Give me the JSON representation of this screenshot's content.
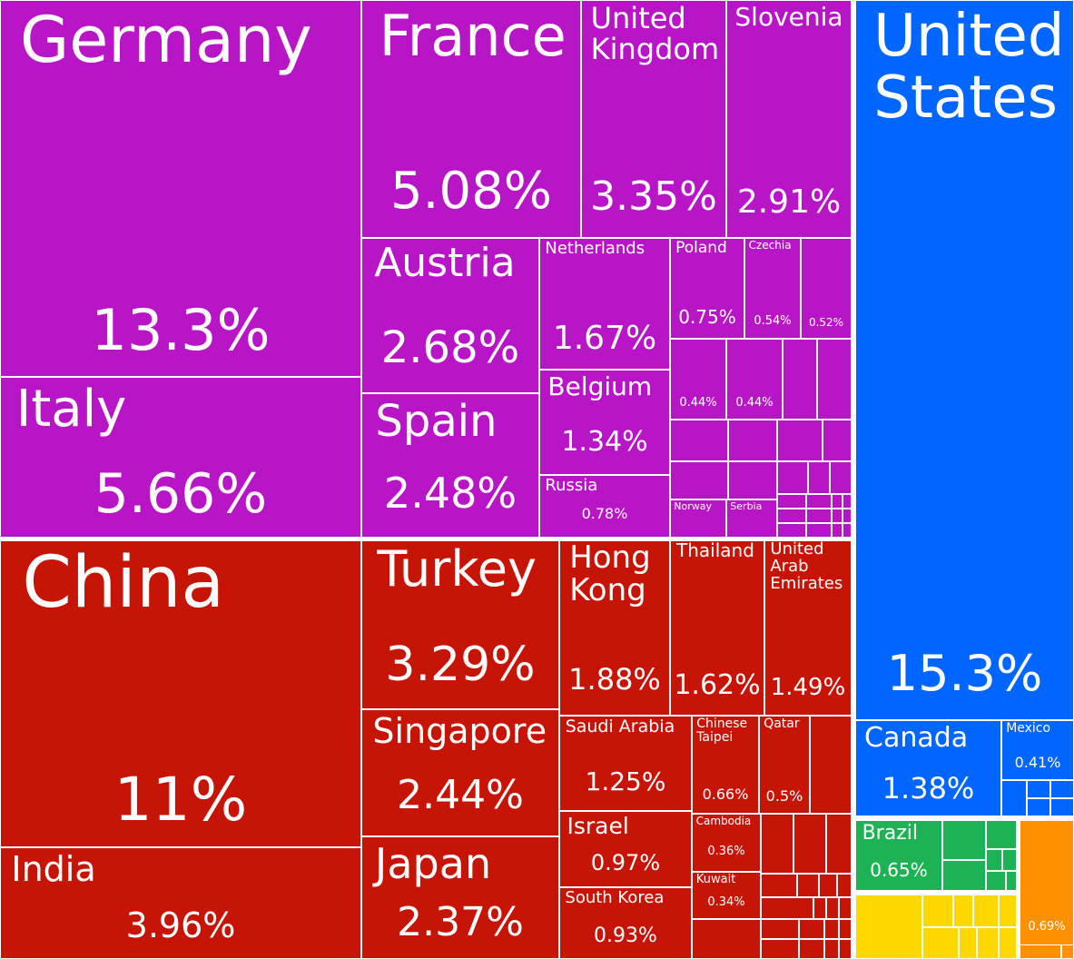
{
  "chart_data": {
    "type": "treemap",
    "title": "",
    "colors": {
      "Europe": "#b815c6",
      "Asia": "#c61507",
      "North America": "#0066ff",
      "South America": "#1db354",
      "Oceania": "#ffd800",
      "Africa": "#ff9000"
    },
    "items": [
      {
        "label": "Germany",
        "value": "13.3%",
        "region": "Europe"
      },
      {
        "label": "Italy",
        "value": "5.66%",
        "region": "Europe"
      },
      {
        "label": "France",
        "value": "5.08%",
        "region": "Europe"
      },
      {
        "label": "United Kingdom",
        "value": "3.35%",
        "region": "Europe"
      },
      {
        "label": "Slovenia",
        "value": "2.91%",
        "region": "Europe"
      },
      {
        "label": "Austria",
        "value": "2.68%",
        "region": "Europe"
      },
      {
        "label": "Spain",
        "value": "2.48%",
        "region": "Europe"
      },
      {
        "label": "Netherlands",
        "value": "1.67%",
        "region": "Europe"
      },
      {
        "label": "Belgium",
        "value": "1.34%",
        "region": "Europe"
      },
      {
        "label": "Russia",
        "value": "0.78%",
        "region": "Europe"
      },
      {
        "label": "Poland",
        "value": "0.75%",
        "region": "Europe"
      },
      {
        "label": "Czechia",
        "value": "0.54%",
        "region": "Europe"
      },
      {
        "label": "",
        "value": "0.52%",
        "region": "Europe"
      },
      {
        "label": "",
        "value": "0.44%",
        "region": "Europe"
      },
      {
        "label": "",
        "value": "0.44%",
        "region": "Europe"
      },
      {
        "label": "Norway",
        "value": "",
        "region": "Europe"
      },
      {
        "label": "Serbia",
        "value": "",
        "region": "Europe"
      },
      {
        "label": "China",
        "value": "11%",
        "region": "Asia"
      },
      {
        "label": "India",
        "value": "3.96%",
        "region": "Asia"
      },
      {
        "label": "Turkey",
        "value": "3.29%",
        "region": "Asia"
      },
      {
        "label": "Singapore",
        "value": "2.44%",
        "region": "Asia"
      },
      {
        "label": "Japan",
        "value": "2.37%",
        "region": "Asia"
      },
      {
        "label": "Hong Kong",
        "value": "1.88%",
        "region": "Asia"
      },
      {
        "label": "Thailand",
        "value": "1.62%",
        "region": "Asia"
      },
      {
        "label": "United Arab Emirates",
        "value": "1.49%",
        "region": "Asia"
      },
      {
        "label": "Saudi Arabia",
        "value": "1.25%",
        "region": "Asia"
      },
      {
        "label": "Israel",
        "value": "0.97%",
        "region": "Asia"
      },
      {
        "label": "South Korea",
        "value": "0.93%",
        "region": "Asia"
      },
      {
        "label": "Chinese Taipei",
        "value": "0.66%",
        "region": "Asia"
      },
      {
        "label": "Qatar",
        "value": "0.5%",
        "region": "Asia"
      },
      {
        "label": "Cambodia",
        "value": "0.36%",
        "region": "Asia"
      },
      {
        "label": "Kuwait",
        "value": "0.34%",
        "region": "Asia"
      },
      {
        "label": "United States",
        "value": "15.3%",
        "region": "North America"
      },
      {
        "label": "Canada",
        "value": "1.38%",
        "region": "North America"
      },
      {
        "label": "Mexico",
        "value": "0.41%",
        "region": "North America"
      },
      {
        "label": "Brazil",
        "value": "0.65%",
        "region": "South America"
      },
      {
        "label": "",
        "value": "0.69%",
        "region": "Africa"
      }
    ]
  }
}
